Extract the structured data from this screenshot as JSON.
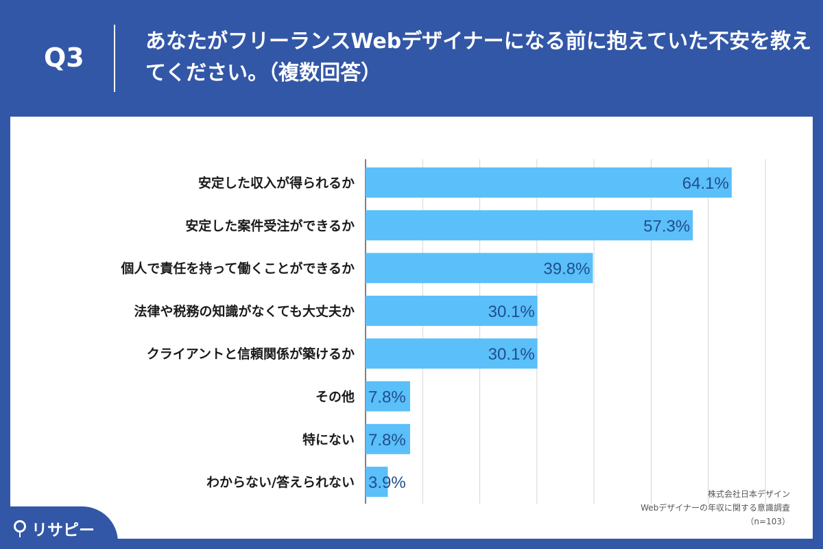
{
  "header": {
    "question_no": "Q3",
    "title": "あなたがフリーランスWebデザイナーになる前に抱えていた不安を教えてください。（複数回答）"
  },
  "chart_data": {
    "type": "bar",
    "orientation": "horizontal",
    "categories": [
      "安定した収入が得られるか",
      "安定した案件受注ができるか",
      "個人で責任を持って働くことができるか",
      "法律や税務の知識がなくても大丈夫か",
      "クライアントと信頼関係が築けるか",
      "その他",
      "特にない",
      "わからない/答えられない"
    ],
    "values": [
      64.1,
      57.3,
      39.8,
      30.1,
      30.1,
      7.8,
      7.8,
      3.9
    ],
    "value_labels": [
      "64.1%",
      "57.3%",
      "39.8%",
      "30.1%",
      "30.1%",
      "7.8%",
      "7.8%",
      "3.9%"
    ],
    "unit": "%",
    "xlim": [
      0,
      70
    ],
    "grid": true,
    "bar_color": "#5bbff9",
    "label_color": "#1f4e8c"
  },
  "source": {
    "line1": "株式会社日本デザイン",
    "line2": "Webデザイナーの年収に関する意識調査",
    "line3": "（n=103）"
  },
  "logo": {
    "text": "リサピー"
  },
  "colors": {
    "background": "#3357a7",
    "panel": "#ffffff"
  }
}
